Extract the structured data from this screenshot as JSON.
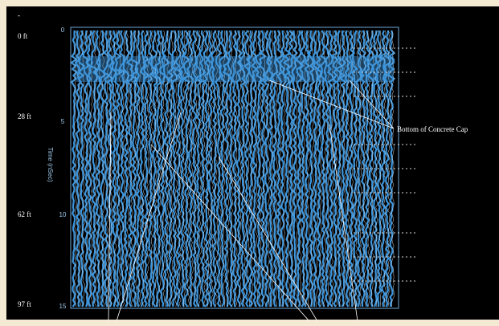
{
  "corner_mark": "-",
  "depth_labels": [
    "0 ft",
    "28 ft",
    "62 ft",
    "97 ft"
  ],
  "time_axis": {
    "label": "Time (nSec)",
    "ticks": [
      "0",
      "5",
      "10",
      "15"
    ]
  },
  "annotation": "Bottom of Concrete Cap"
}
